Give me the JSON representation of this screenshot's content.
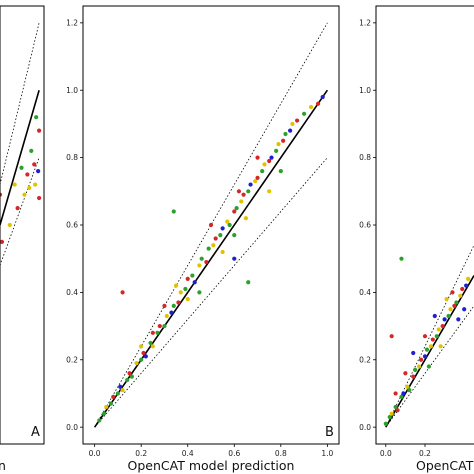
{
  "chart_data": [
    {
      "type": "scatter",
      "panel_label": "A",
      "xlabel": "n",
      "ylabel": "",
      "xlim": [
        0.6,
        1.05
      ],
      "ylim": [
        -0.05,
        1.25
      ],
      "xticks": [],
      "yticks": [],
      "series_colors": [
        "#d62728",
        "#e0c200",
        "#1f1fd0",
        "#2ca02c"
      ],
      "reference_lines": [
        {
          "style": "dotted",
          "x": [
            0.6,
            1.0
          ],
          "y": [
            0.72,
            1.2
          ]
        },
        {
          "style": "solid",
          "x": [
            0.6,
            1.0
          ],
          "y": [
            0.6,
            1.0
          ]
        },
        {
          "style": "dotted",
          "x": [
            0.6,
            1.0
          ],
          "y": [
            0.48,
            0.8
          ]
        }
      ],
      "points": [
        {
          "x": 0.6,
          "y": 0.69,
          "c": 0
        },
        {
          "x": 0.62,
          "y": 0.55,
          "c": 0
        },
        {
          "x": 0.75,
          "y": 0.72,
          "c": 1
        },
        {
          "x": 0.78,
          "y": 0.65,
          "c": 0
        },
        {
          "x": 0.82,
          "y": 0.77,
          "c": 3
        },
        {
          "x": 0.85,
          "y": 0.69,
          "c": 1
        },
        {
          "x": 0.88,
          "y": 0.75,
          "c": 0
        },
        {
          "x": 0.9,
          "y": 0.71,
          "c": 1
        },
        {
          "x": 0.92,
          "y": 0.82,
          "c": 3
        },
        {
          "x": 0.95,
          "y": 0.78,
          "c": 0
        },
        {
          "x": 0.96,
          "y": 0.72,
          "c": 1
        },
        {
          "x": 0.97,
          "y": 0.92,
          "c": 3
        },
        {
          "x": 0.99,
          "y": 0.76,
          "c": 2
        },
        {
          "x": 1.0,
          "y": 0.88,
          "c": 0
        },
        {
          "x": 1.0,
          "y": 0.68,
          "c": 0
        },
        {
          "x": 0.7,
          "y": 0.6,
          "c": 1
        }
      ]
    },
    {
      "type": "scatter",
      "panel_label": "B",
      "xlabel": "OpenCAT model prediction",
      "ylabel": "",
      "xlim": [
        -0.05,
        1.05
      ],
      "ylim": [
        -0.05,
        1.25
      ],
      "xticks": [
        "0.0",
        "0.2",
        "0.4",
        "0.6",
        "0.8",
        "1.0"
      ],
      "yticks": [
        "0.0",
        "0.2",
        "0.4",
        "0.6",
        "0.8",
        "1.0",
        "1.2"
      ],
      "series_colors": [
        "#d62728",
        "#e0c200",
        "#1f1fd0",
        "#2ca02c"
      ],
      "reference_lines": [
        {
          "style": "dotted",
          "x": [
            0.0,
            1.0
          ],
          "y": [
            0.0,
            1.2
          ]
        },
        {
          "style": "solid",
          "x": [
            0.0,
            1.0
          ],
          "y": [
            0.0,
            1.0
          ]
        },
        {
          "style": "dotted",
          "x": [
            0.0,
            1.0
          ],
          "y": [
            0.0,
            0.8
          ]
        }
      ],
      "points": [
        {
          "x": 0.02,
          "y": 0.02,
          "c": 3
        },
        {
          "x": 0.04,
          "y": 0.04,
          "c": 3
        },
        {
          "x": 0.05,
          "y": 0.06,
          "c": 1
        },
        {
          "x": 0.07,
          "y": 0.07,
          "c": 3
        },
        {
          "x": 0.08,
          "y": 0.09,
          "c": 0
        },
        {
          "x": 0.1,
          "y": 0.1,
          "c": 3
        },
        {
          "x": 0.11,
          "y": 0.12,
          "c": 2
        },
        {
          "x": 0.12,
          "y": 0.11,
          "c": 1
        },
        {
          "x": 0.14,
          "y": 0.14,
          "c": 3
        },
        {
          "x": 0.15,
          "y": 0.16,
          "c": 0
        },
        {
          "x": 0.16,
          "y": 0.15,
          "c": 3
        },
        {
          "x": 0.18,
          "y": 0.19,
          "c": 1
        },
        {
          "x": 0.2,
          "y": 0.2,
          "c": 3
        },
        {
          "x": 0.21,
          "y": 0.22,
          "c": 0
        },
        {
          "x": 0.22,
          "y": 0.21,
          "c": 2
        },
        {
          "x": 0.24,
          "y": 0.25,
          "c": 3
        },
        {
          "x": 0.25,
          "y": 0.24,
          "c": 1
        },
        {
          "x": 0.27,
          "y": 0.28,
          "c": 3
        },
        {
          "x": 0.28,
          "y": 0.3,
          "c": 0
        },
        {
          "x": 0.3,
          "y": 0.3,
          "c": 3
        },
        {
          "x": 0.31,
          "y": 0.33,
          "c": 1
        },
        {
          "x": 0.33,
          "y": 0.34,
          "c": 2
        },
        {
          "x": 0.34,
          "y": 0.36,
          "c": 3
        },
        {
          "x": 0.36,
          "y": 0.37,
          "c": 0
        },
        {
          "x": 0.37,
          "y": 0.4,
          "c": 1
        },
        {
          "x": 0.39,
          "y": 0.41,
          "c": 3
        },
        {
          "x": 0.4,
          "y": 0.44,
          "c": 0
        },
        {
          "x": 0.42,
          "y": 0.45,
          "c": 3
        },
        {
          "x": 0.43,
          "y": 0.43,
          "c": 2
        },
        {
          "x": 0.45,
          "y": 0.48,
          "c": 1
        },
        {
          "x": 0.46,
          "y": 0.5,
          "c": 3
        },
        {
          "x": 0.48,
          "y": 0.49,
          "c": 0
        },
        {
          "x": 0.49,
          "y": 0.53,
          "c": 3
        },
        {
          "x": 0.51,
          "y": 0.54,
          "c": 1
        },
        {
          "x": 0.52,
          "y": 0.56,
          "c": 0
        },
        {
          "x": 0.54,
          "y": 0.57,
          "c": 3
        },
        {
          "x": 0.55,
          "y": 0.59,
          "c": 2
        },
        {
          "x": 0.57,
          "y": 0.61,
          "c": 1
        },
        {
          "x": 0.58,
          "y": 0.6,
          "c": 3
        },
        {
          "x": 0.6,
          "y": 0.64,
          "c": 0
        },
        {
          "x": 0.61,
          "y": 0.65,
          "c": 3
        },
        {
          "x": 0.63,
          "y": 0.67,
          "c": 1
        },
        {
          "x": 0.64,
          "y": 0.69,
          "c": 0
        },
        {
          "x": 0.66,
          "y": 0.7,
          "c": 3
        },
        {
          "x": 0.67,
          "y": 0.72,
          "c": 2
        },
        {
          "x": 0.69,
          "y": 0.73,
          "c": 1
        },
        {
          "x": 0.7,
          "y": 0.74,
          "c": 0
        },
        {
          "x": 0.72,
          "y": 0.76,
          "c": 3
        },
        {
          "x": 0.73,
          "y": 0.78,
          "c": 1
        },
        {
          "x": 0.75,
          "y": 0.79,
          "c": 0
        },
        {
          "x": 0.76,
          "y": 0.8,
          "c": 2
        },
        {
          "x": 0.78,
          "y": 0.82,
          "c": 3
        },
        {
          "x": 0.79,
          "y": 0.84,
          "c": 1
        },
        {
          "x": 0.81,
          "y": 0.85,
          "c": 0
        },
        {
          "x": 0.82,
          "y": 0.87,
          "c": 3
        },
        {
          "x": 0.84,
          "y": 0.88,
          "c": 2
        },
        {
          "x": 0.85,
          "y": 0.9,
          "c": 1
        },
        {
          "x": 0.87,
          "y": 0.91,
          "c": 0
        },
        {
          "x": 0.9,
          "y": 0.93,
          "c": 3
        },
        {
          "x": 0.93,
          "y": 0.95,
          "c": 1
        },
        {
          "x": 0.96,
          "y": 0.96,
          "c": 0
        },
        {
          "x": 0.98,
          "y": 0.98,
          "c": 2
        },
        {
          "x": 0.3,
          "y": 0.36,
          "c": 0
        },
        {
          "x": 0.35,
          "y": 0.42,
          "c": 1
        },
        {
          "x": 0.45,
          "y": 0.4,
          "c": 3
        },
        {
          "x": 0.5,
          "y": 0.6,
          "c": 0
        },
        {
          "x": 0.55,
          "y": 0.52,
          "c": 1
        },
        {
          "x": 0.6,
          "y": 0.57,
          "c": 3
        },
        {
          "x": 0.65,
          "y": 0.62,
          "c": 1
        },
        {
          "x": 0.7,
          "y": 0.8,
          "c": 0
        },
        {
          "x": 0.75,
          "y": 0.7,
          "c": 1
        },
        {
          "x": 0.8,
          "y": 0.76,
          "c": 3
        },
        {
          "x": 0.4,
          "y": 0.38,
          "c": 1
        },
        {
          "x": 0.25,
          "y": 0.28,
          "c": 0
        },
        {
          "x": 0.2,
          "y": 0.24,
          "c": 1
        },
        {
          "x": 0.62,
          "y": 0.7,
          "c": 0
        },
        {
          "x": 0.12,
          "y": 0.4,
          "c": 0
        },
        {
          "x": 0.34,
          "y": 0.64,
          "c": 3
        },
        {
          "x": 0.66,
          "y": 0.43,
          "c": 3
        },
        {
          "x": 0.6,
          "y": 0.5,
          "c": 2
        }
      ]
    },
    {
      "type": "scatter",
      "panel_label": "",
      "xlabel": "OpenCAT",
      "ylabel": "",
      "xlim": [
        -0.05,
        0.45
      ],
      "ylim": [
        -0.05,
        1.25
      ],
      "xticks": [
        "0.0",
        "0.2"
      ],
      "yticks": [
        "0.0",
        "0.2",
        "0.4",
        "0.6",
        "0.8",
        "1.0",
        "1.2"
      ],
      "series_colors": [
        "#d62728",
        "#e0c200",
        "#1f1fd0",
        "#2ca02c"
      ],
      "reference_lines": [
        {
          "style": "dotted",
          "x": [
            0.0,
            0.45
          ],
          "y": [
            0.0,
            0.54
          ]
        },
        {
          "style": "solid",
          "x": [
            0.0,
            0.45
          ],
          "y": [
            0.0,
            0.45
          ]
        },
        {
          "style": "dotted",
          "x": [
            0.0,
            0.45
          ],
          "y": [
            0.0,
            0.36
          ]
        }
      ],
      "points": [
        {
          "x": 0.0,
          "y": 0.01,
          "c": 3
        },
        {
          "x": 0.02,
          "y": 0.03,
          "c": 3
        },
        {
          "x": 0.03,
          "y": 0.04,
          "c": 1
        },
        {
          "x": 0.05,
          "y": 0.06,
          "c": 3
        },
        {
          "x": 0.06,
          "y": 0.05,
          "c": 0
        },
        {
          "x": 0.08,
          "y": 0.09,
          "c": 3
        },
        {
          "x": 0.09,
          "y": 0.1,
          "c": 2
        },
        {
          "x": 0.11,
          "y": 0.12,
          "c": 1
        },
        {
          "x": 0.12,
          "y": 0.11,
          "c": 3
        },
        {
          "x": 0.14,
          "y": 0.15,
          "c": 0
        },
        {
          "x": 0.15,
          "y": 0.17,
          "c": 3
        },
        {
          "x": 0.17,
          "y": 0.18,
          "c": 1
        },
        {
          "x": 0.18,
          "y": 0.2,
          "c": 0
        },
        {
          "x": 0.2,
          "y": 0.21,
          "c": 2
        },
        {
          "x": 0.21,
          "y": 0.23,
          "c": 3
        },
        {
          "x": 0.23,
          "y": 0.24,
          "c": 1
        },
        {
          "x": 0.24,
          "y": 0.26,
          "c": 0
        },
        {
          "x": 0.26,
          "y": 0.27,
          "c": 3
        },
        {
          "x": 0.27,
          "y": 0.29,
          "c": 1
        },
        {
          "x": 0.29,
          "y": 0.3,
          "c": 0
        },
        {
          "x": 0.3,
          "y": 0.32,
          "c": 2
        },
        {
          "x": 0.32,
          "y": 0.33,
          "c": 3
        },
        {
          "x": 0.33,
          "y": 0.35,
          "c": 1
        },
        {
          "x": 0.35,
          "y": 0.36,
          "c": 0
        },
        {
          "x": 0.36,
          "y": 0.37,
          "c": 3
        },
        {
          "x": 0.38,
          "y": 0.39,
          "c": 1
        },
        {
          "x": 0.39,
          "y": 0.41,
          "c": 0
        },
        {
          "x": 0.41,
          "y": 0.42,
          "c": 2
        },
        {
          "x": 0.42,
          "y": 0.44,
          "c": 1
        },
        {
          "x": 0.1,
          "y": 0.16,
          "c": 0
        },
        {
          "x": 0.14,
          "y": 0.22,
          "c": 2
        },
        {
          "x": 0.2,
          "y": 0.27,
          "c": 0
        },
        {
          "x": 0.25,
          "y": 0.33,
          "c": 2
        },
        {
          "x": 0.28,
          "y": 0.24,
          "c": 1
        },
        {
          "x": 0.34,
          "y": 0.4,
          "c": 0
        },
        {
          "x": 0.37,
          "y": 0.32,
          "c": 2
        },
        {
          "x": 0.22,
          "y": 0.18,
          "c": 3
        },
        {
          "x": 0.05,
          "y": 0.1,
          "c": 0
        },
        {
          "x": 0.08,
          "y": 0.5,
          "c": 3
        },
        {
          "x": 0.03,
          "y": 0.27,
          "c": 0
        },
        {
          "x": 0.31,
          "y": 0.38,
          "c": 1
        },
        {
          "x": 0.4,
          "y": 0.35,
          "c": 2
        }
      ]
    }
  ]
}
